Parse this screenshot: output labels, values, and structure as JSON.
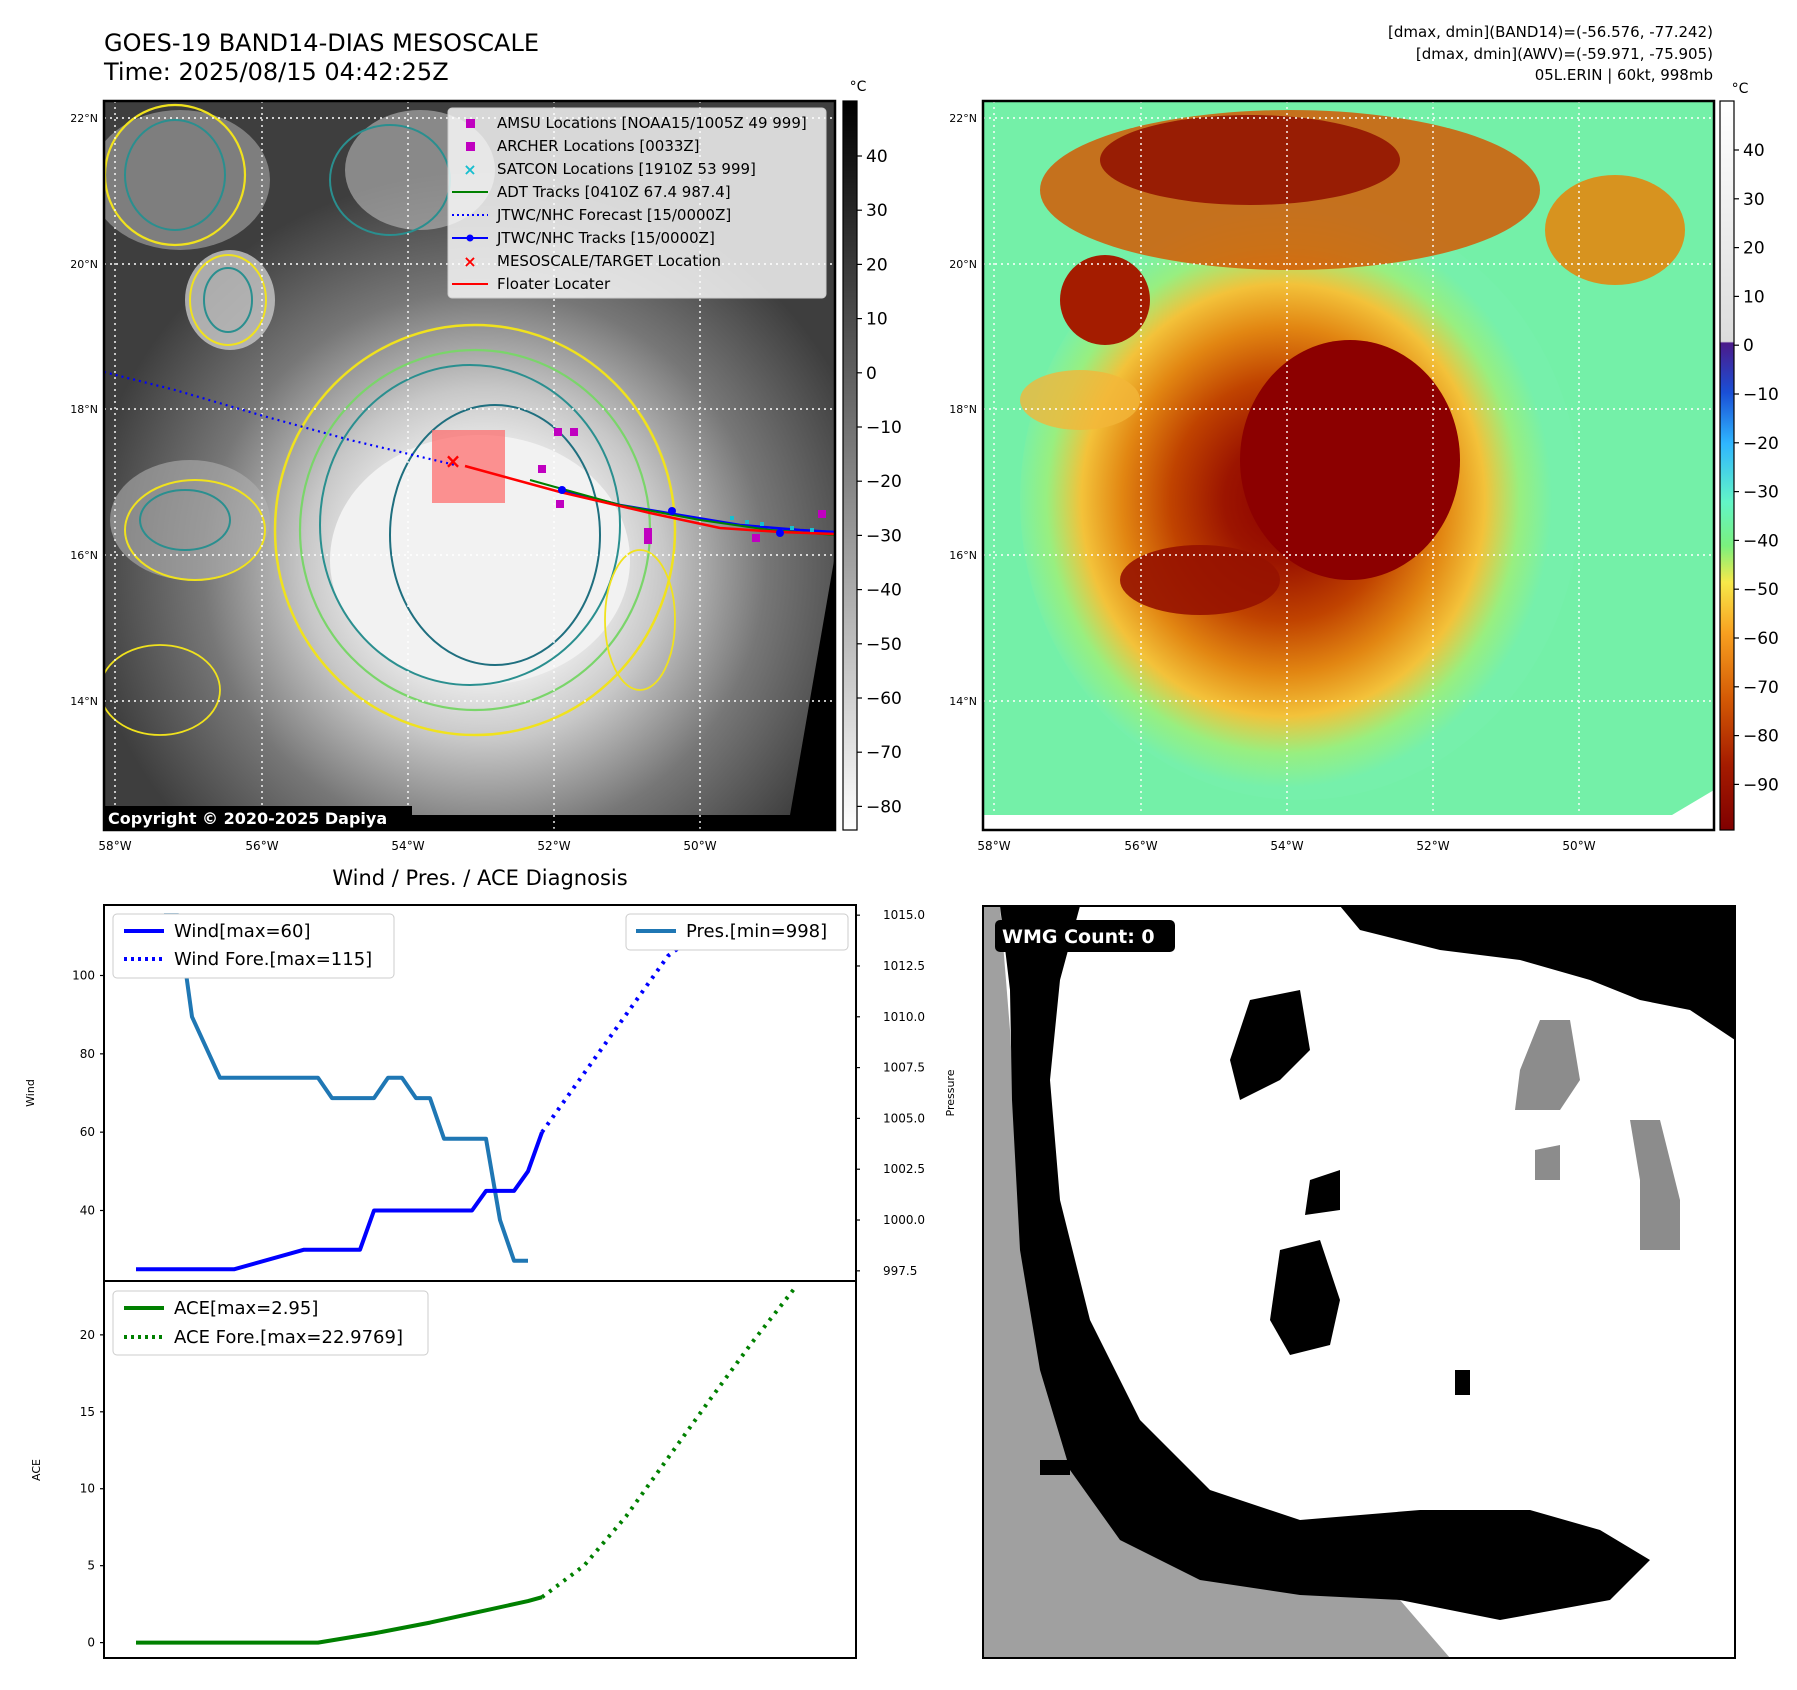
{
  "header": {
    "title": "GOES-19 BAND14-DIAS MESOSCALE",
    "time": "Time: 2025/08/15 04:42:25Z",
    "info_line1": "[dmax, dmin](BAND14)=(-56.576, -77.242)",
    "info_line2": "[dmax, dmin](AWV)=(-59.971, -75.905)",
    "info_line3": "05L.ERIN | 60kt, 998mb"
  },
  "map_axes": {
    "lat_labels": [
      "22°N",
      "20°N",
      "18°N",
      "16°N",
      "14°N"
    ],
    "lon_labels": [
      "58°W",
      "56°W",
      "54°W",
      "52°W",
      "50°W"
    ]
  },
  "colorbars": {
    "unit": "°C",
    "bw_ticks": [
      "40",
      "30",
      "20",
      "10",
      "0",
      "−10",
      "−20",
      "−30",
      "−40",
      "−50",
      "−60",
      "−70",
      "−80"
    ],
    "color_ticks": [
      "40",
      "30",
      "20",
      "10",
      "0",
      "−10",
      "−20",
      "−30",
      "−40",
      "−50",
      "−60",
      "−70",
      "−80",
      "−90"
    ]
  },
  "legend": {
    "items": [
      {
        "label": "AMSU Locations [NOAA15/1005Z 49 999]",
        "marker": "square",
        "color": "#c000c0"
      },
      {
        "label": "ARCHER Locations [0033Z]",
        "marker": "square",
        "color": "#c000c0"
      },
      {
        "label": "SATCON Locations [1910Z 53 999]",
        "marker": "x",
        "color": "#17becf"
      },
      {
        "label": "ADT Tracks [0410Z 67.4 987.4]",
        "marker": "line",
        "color": "#008000"
      },
      {
        "label": "JTWC/NHC Forecast [15/0000Z]",
        "marker": "dotted",
        "color": "#0000ff"
      },
      {
        "label": "JTWC/NHC Tracks [15/0000Z]",
        "marker": "line-dot",
        "color": "#0000ff"
      },
      {
        "label": "MESOSCALE/TARGET Location",
        "marker": "x",
        "color": "#ff0000"
      },
      {
        "label": "Floater Locater",
        "marker": "line",
        "color": "#ff0000"
      }
    ]
  },
  "copyright": "Copyright © 2020-2025 Dapiya",
  "diagnosis": {
    "title": "Wind / Pres. / ACE Diagnosis",
    "wind_ylabel": "Wind",
    "pressure_ylabel": "Pressure",
    "ace_ylabel": "ACE",
    "legend_wind": "Wind[max=60]",
    "legend_wind_fore": "Wind Fore.[max=115]",
    "legend_pres": "Pres.[min=998]",
    "legend_ace": "ACE[max=2.95]",
    "legend_ace_fore": "ACE Fore.[max=22.9769]"
  },
  "wmg": {
    "label": "WMG Count: 0"
  },
  "chart_data": [
    {
      "type": "line",
      "title": "Wind / Pres. / ACE Diagnosis",
      "ylabel": "Wind",
      "ylim": [
        22,
        118
      ],
      "yticks": [
        40,
        60,
        80,
        100
      ],
      "x": [
        0,
        1,
        2,
        3,
        4,
        5,
        6,
        7,
        8,
        9,
        10,
        11,
        12,
        13,
        14,
        15,
        16,
        17,
        18,
        19,
        20,
        21,
        22,
        23,
        24,
        25,
        26,
        27,
        28,
        29,
        30,
        31,
        32,
        33,
        34,
        35,
        36,
        37,
        38,
        39,
        40,
        41,
        42,
        43,
        44,
        45,
        46,
        47,
        48,
        49
      ],
      "series": [
        {
          "name": "Wind[max=60]",
          "color": "#0000ff",
          "style": "solid",
          "x": [
            0,
            6,
            7,
            12,
            13,
            16,
            17,
            20,
            21,
            24,
            25,
            26,
            27,
            28,
            29
          ],
          "values": [
            25,
            25,
            25,
            30,
            30,
            30,
            40,
            40,
            40,
            40,
            45,
            45,
            45,
            50,
            60
          ]
        },
        {
          "name": "Wind Fore.[max=115]",
          "color": "#0000ff",
          "style": "dotted",
          "x": [
            29,
            32,
            35,
            38,
            41,
            44,
            47
          ],
          "values": [
            60,
            75,
            90,
            105,
            113,
            114,
            110
          ]
        }
      ]
    },
    {
      "type": "line",
      "ylabel": "Pressure",
      "ylim": [
        997,
        1015.5
      ],
      "yticks": [
        997.5,
        1000.0,
        1002.5,
        1005.0,
        1007.5,
        1010.0,
        1012.5,
        1015.0
      ],
      "series": [
        {
          "name": "Pres.[min=998]",
          "color": "#1f77b4",
          "style": "solid",
          "x": [
            2,
            3,
            4,
            6,
            13,
            14,
            17,
            18,
            19,
            20,
            21,
            22,
            23,
            24,
            25,
            26,
            27,
            28
          ],
          "values": [
            1015,
            1015,
            1010,
            1007,
            1007,
            1006,
            1006,
            1007,
            1007,
            1006,
            1006,
            1004,
            1004,
            1004,
            1004,
            1000,
            998,
            998
          ]
        }
      ]
    },
    {
      "type": "line",
      "ylabel": "ACE",
      "ylim": [
        -1,
        23.5
      ],
      "yticks": [
        0,
        5,
        10,
        15,
        20
      ],
      "series": [
        {
          "name": "ACE[max=2.95]",
          "color": "#008000",
          "style": "solid",
          "x": [
            0,
            6,
            13,
            17,
            21,
            25,
            28,
            29
          ],
          "values": [
            0,
            0,
            0,
            0.6,
            1.3,
            2.1,
            2.7,
            2.95
          ]
        },
        {
          "name": "ACE Fore.[max=22.9769]",
          "color": "#008000",
          "style": "dotted",
          "x": [
            29,
            32,
            35,
            38,
            41,
            44,
            47
          ],
          "values": [
            2.95,
            5.0,
            8.2,
            12.0,
            15.8,
            19.5,
            22.9769
          ]
        }
      ]
    }
  ]
}
